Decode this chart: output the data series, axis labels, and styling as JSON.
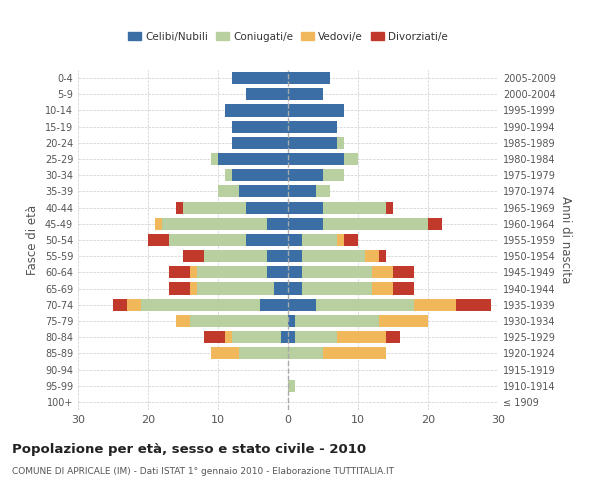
{
  "age_groups": [
    "100+",
    "95-99",
    "90-94",
    "85-89",
    "80-84",
    "75-79",
    "70-74",
    "65-69",
    "60-64",
    "55-59",
    "50-54",
    "45-49",
    "40-44",
    "35-39",
    "30-34",
    "25-29",
    "20-24",
    "15-19",
    "10-14",
    "5-9",
    "0-4"
  ],
  "birth_years": [
    "≤ 1909",
    "1910-1914",
    "1915-1919",
    "1920-1924",
    "1925-1929",
    "1930-1934",
    "1935-1939",
    "1940-1944",
    "1945-1949",
    "1950-1954",
    "1955-1959",
    "1960-1964",
    "1965-1969",
    "1970-1974",
    "1975-1979",
    "1980-1984",
    "1985-1989",
    "1990-1994",
    "1995-1999",
    "2000-2004",
    "2005-2009"
  ],
  "male": {
    "celibi": [
      0,
      0,
      0,
      0,
      1,
      0,
      4,
      2,
      3,
      3,
      6,
      3,
      6,
      7,
      8,
      10,
      8,
      8,
      9,
      6,
      8
    ],
    "coniugati": [
      0,
      0,
      0,
      7,
      7,
      14,
      17,
      11,
      10,
      9,
      11,
      15,
      9,
      3,
      1,
      1,
      0,
      0,
      0,
      0,
      0
    ],
    "vedovi": [
      0,
      0,
      0,
      4,
      1,
      2,
      2,
      1,
      1,
      0,
      0,
      1,
      0,
      0,
      0,
      0,
      0,
      0,
      0,
      0,
      0
    ],
    "divorziati": [
      0,
      0,
      0,
      0,
      3,
      0,
      2,
      3,
      3,
      3,
      3,
      0,
      1,
      0,
      0,
      0,
      0,
      0,
      0,
      0,
      0
    ]
  },
  "female": {
    "nubili": [
      0,
      0,
      0,
      0,
      1,
      1,
      4,
      2,
      2,
      2,
      2,
      5,
      5,
      4,
      5,
      8,
      7,
      7,
      8,
      5,
      6
    ],
    "coniugate": [
      0,
      1,
      0,
      5,
      6,
      12,
      14,
      10,
      10,
      9,
      5,
      15,
      9,
      2,
      3,
      2,
      1,
      0,
      0,
      0,
      0
    ],
    "vedove": [
      0,
      0,
      0,
      9,
      7,
      7,
      6,
      3,
      3,
      2,
      1,
      0,
      0,
      0,
      0,
      0,
      0,
      0,
      0,
      0,
      0
    ],
    "divorziate": [
      0,
      0,
      0,
      0,
      2,
      0,
      5,
      3,
      3,
      1,
      2,
      2,
      1,
      0,
      0,
      0,
      0,
      0,
      0,
      0,
      0
    ]
  },
  "colors": {
    "celibi": "#3a6ea5",
    "coniugati": "#b8cfa0",
    "vedovi": "#f0b85a",
    "divorziati": "#c0392b"
  },
  "title": "Popolazione per età, sesso e stato civile - 2010",
  "subtitle": "COMUNE DI APRICALE (IM) - Dati ISTAT 1° gennaio 2010 - Elaborazione TUTTITALIA.IT",
  "ylabel_left": "Fasce di età",
  "ylabel_right": "Anni di nascita",
  "xlim": 30,
  "bg_color": "#ffffff",
  "grid_color": "#cccccc"
}
